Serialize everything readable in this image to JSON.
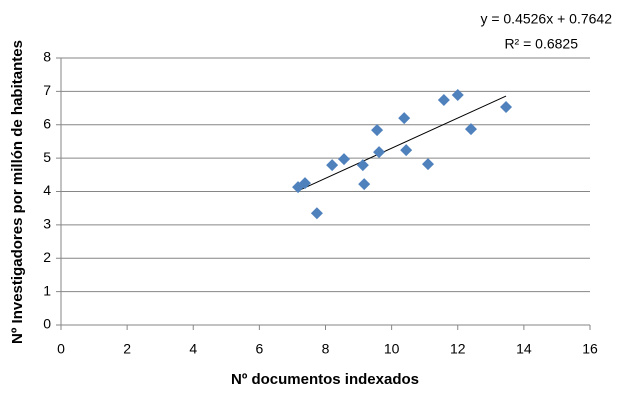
{
  "chart_data": {
    "type": "scatter",
    "x_label": "Nº documentos indexados",
    "y_label": "Nº Investigadores por millón de habitantes",
    "trendline_equation": "y = 0.4526x + 0.7642",
    "trendline_r2": "R² = 0.6825",
    "x": [
      7.17,
      7.38,
      7.74,
      8.2,
      8.56,
      9.13,
      9.17,
      9.56,
      9.62,
      10.38,
      10.44,
      11.1,
      11.58,
      12.0,
      12.4,
      13.46
    ],
    "values": [
      4.13,
      4.25,
      3.35,
      4.79,
      4.97,
      4.79,
      4.22,
      5.84,
      5.18,
      6.2,
      5.24,
      4.82,
      6.74,
      6.89,
      5.87,
      6.53
    ],
    "color": "#4f81bd",
    "xlim": [
      0,
      16
    ],
    "xticks": [
      0,
      2,
      4,
      6,
      8,
      10,
      12,
      14,
      16
    ],
    "ylim": [
      0,
      8
    ],
    "yticks": [
      0,
      1,
      2,
      3,
      4,
      5,
      6,
      7,
      8
    ],
    "grid": true
  }
}
